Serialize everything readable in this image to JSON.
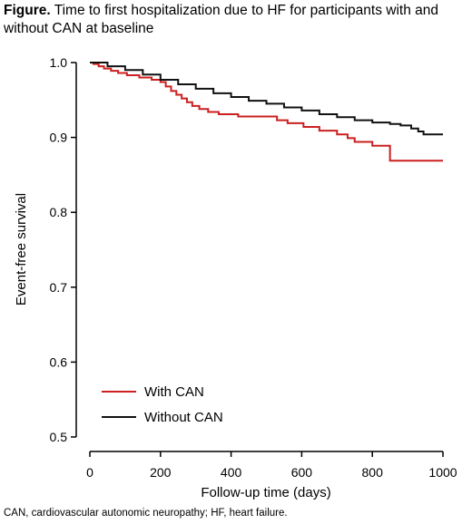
{
  "title": {
    "lead": "Figure.",
    "text": "Time to first hospitalization due to HF for participants with and without CAN at baseline"
  },
  "footnote": "CAN, cardiovascular autonomic neuropathy; HF, heart failure.",
  "colors": {
    "with_can": "#cc1f1f",
    "without_can": "#111111",
    "axis": "#000000"
  },
  "chart_data": {
    "type": "line",
    "step": true,
    "xlabel": "Follow-up time (days)",
    "ylabel": "Event-free survival",
    "xlim": [
      0,
      1000
    ],
    "ylim": [
      0.5,
      1.0
    ],
    "xticks": [
      0,
      200,
      400,
      600,
      800,
      1000
    ],
    "yticks": [
      0.5,
      0.6,
      0.7,
      0.8,
      0.9,
      1.0
    ],
    "xtick_labels": [
      "0",
      "200",
      "400",
      "600",
      "800",
      "1000"
    ],
    "ytick_labels": [
      "0.5",
      "0.6",
      "0.7",
      "0.8",
      "0.9",
      "1.0"
    ],
    "grid": false,
    "legend_position": "bottom-left",
    "series": [
      {
        "name": "With CAN",
        "color": "#cc1f1f",
        "x": [
          0,
          10,
          25,
          40,
          60,
          80,
          105,
          140,
          175,
          200,
          215,
          230,
          245,
          260,
          275,
          290,
          310,
          335,
          365,
          420,
          530,
          560,
          605,
          650,
          700,
          730,
          750,
          800,
          850,
          1000
        ],
        "y": [
          1.0,
          0.998,
          0.995,
          0.992,
          0.989,
          0.986,
          0.983,
          0.98,
          0.977,
          0.974,
          0.968,
          0.962,
          0.957,
          0.952,
          0.947,
          0.942,
          0.938,
          0.934,
          0.931,
          0.928,
          0.923,
          0.919,
          0.914,
          0.909,
          0.904,
          0.899,
          0.894,
          0.889,
          0.869,
          0.869
        ]
      },
      {
        "name": "Without CAN",
        "color": "#111111",
        "x": [
          0,
          50,
          100,
          150,
          200,
          250,
          300,
          350,
          400,
          450,
          500,
          550,
          600,
          650,
          700,
          750,
          800,
          850,
          880,
          910,
          930,
          945,
          1000
        ],
        "y": [
          1.0,
          0.995,
          0.99,
          0.984,
          0.977,
          0.971,
          0.965,
          0.959,
          0.954,
          0.949,
          0.945,
          0.94,
          0.936,
          0.931,
          0.927,
          0.923,
          0.92,
          0.918,
          0.916,
          0.912,
          0.908,
          0.904,
          0.904
        ]
      }
    ]
  }
}
